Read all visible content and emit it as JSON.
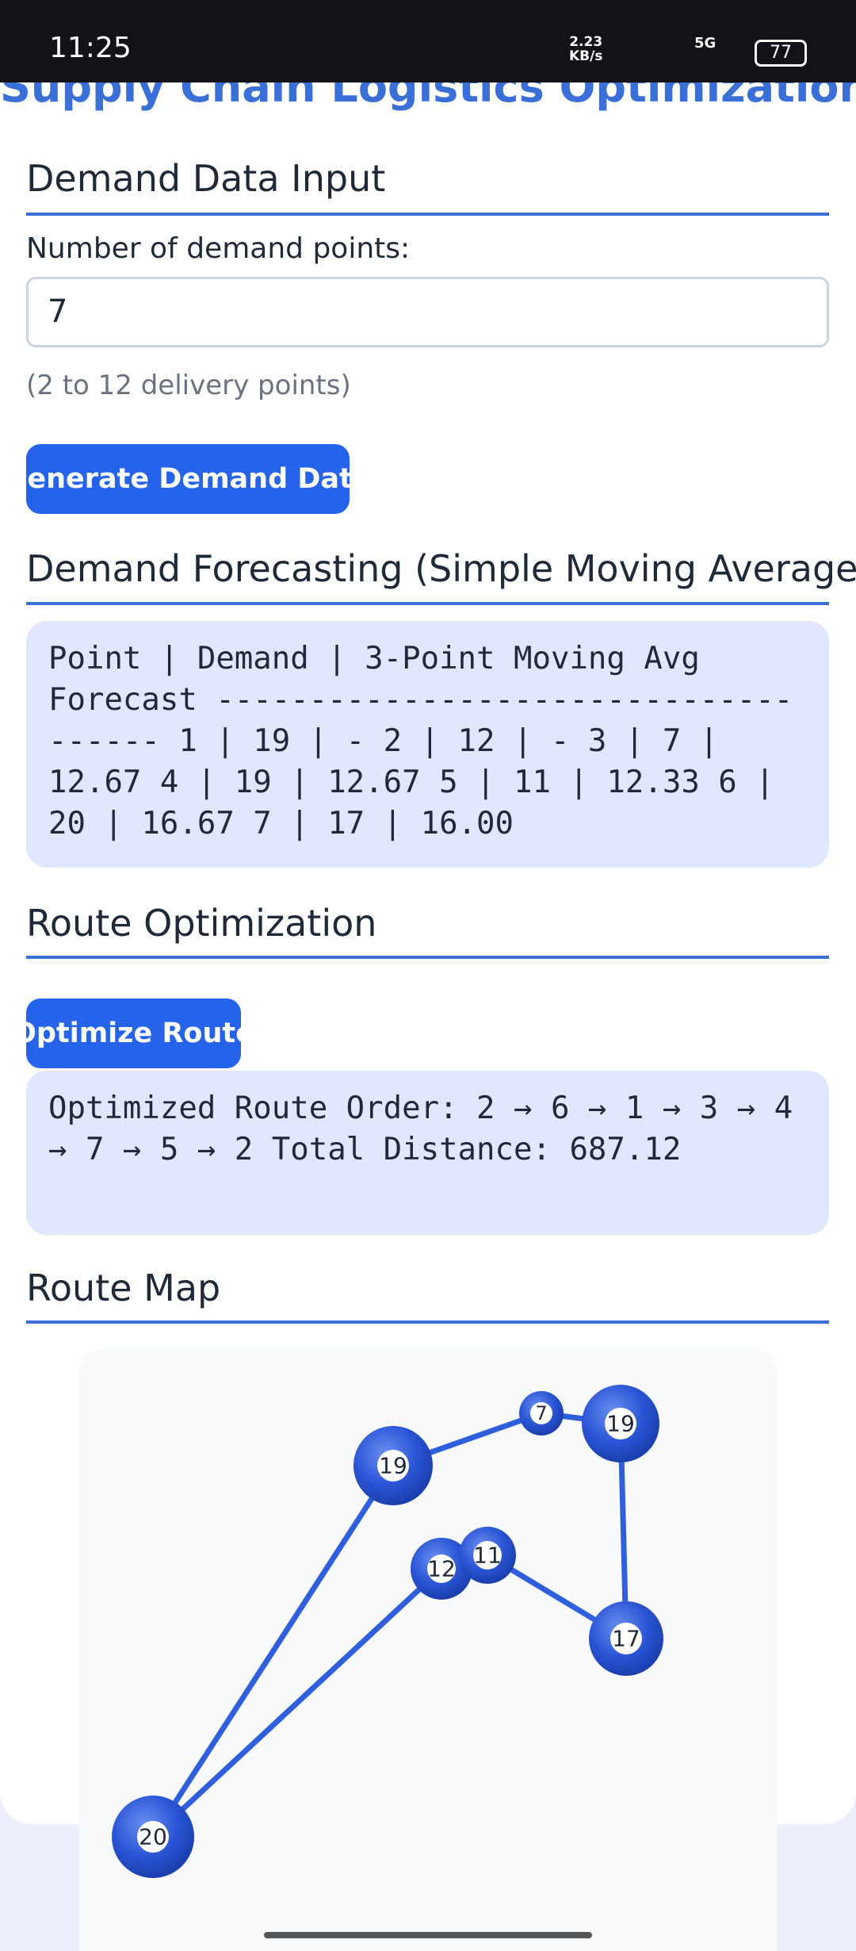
{
  "status_bar": {
    "time": "11:25",
    "speed": "2.23",
    "speed_unit": "KB/s",
    "network": "5G",
    "battery": "77"
  },
  "header": {
    "title": "Supply Chain Logistics Optimization"
  },
  "demand_input": {
    "heading": "Demand Data Input",
    "label": "Number of demand points:",
    "input_value": "7",
    "hint": "(2 to 12 delivery points)",
    "button": "Generate Demand Data"
  },
  "forecast": {
    "heading": "Demand Forecasting (Simple Moving Average)",
    "output": "Point | Demand | 3-Point Moving Avg Forecast ------------------------------------- 1 | 19 | - 2 | 12 | - 3 | 7 | 12.67 4 | 19 | 12.67 5 | 11 | 12.33 6 | 20 | 16.67 7 | 17 | 16.00"
  },
  "route": {
    "heading": "Route Optimization",
    "button": "Optimize Route",
    "output": "Optimized Route Order: 2 → 6 → 1 → 3 → 4 → 7 → 5 → 2 Total Distance: 687.12"
  },
  "map": {
    "heading": "Route Map",
    "nodes": [
      {
        "label": "20"
      },
      {
        "label": "19"
      },
      {
        "label": "7"
      },
      {
        "label": "19"
      },
      {
        "label": "17"
      },
      {
        "label": "11"
      },
      {
        "label": "12"
      }
    ]
  }
}
